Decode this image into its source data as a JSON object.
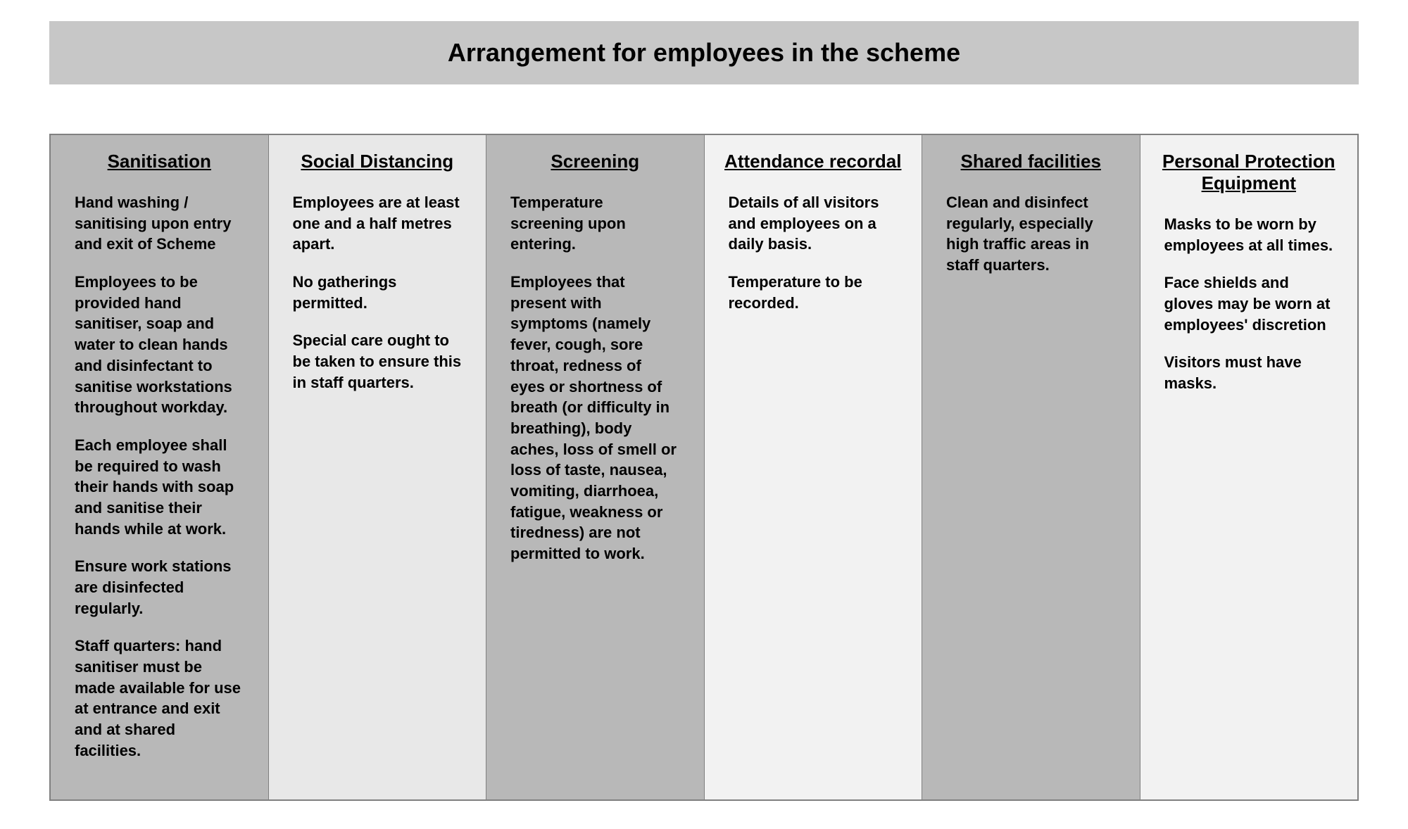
{
  "title": "Arrangement for employees in the scheme",
  "columns": [
    {
      "heading": "Sanitisation",
      "shade": "shade-dark",
      "paragraphs": [
        "Hand washing / sanitising upon entry and exit of Scheme",
        "Employees to be provided hand sanitiser, soap and water to clean hands and disinfectant to sanitise workstations throughout workday.",
        "Each employee shall be required to wash their hands with soap and sanitise their hands while at work.",
        "Ensure work stations are disinfected regularly.",
        "Staff quarters: hand sanitiser must be made available for use at entrance and exit and at shared facilities."
      ]
    },
    {
      "heading": "Social Distancing",
      "shade": "shade-light",
      "paragraphs": [
        "Employees are at least one and a half metres apart.",
        "No gatherings permitted.",
        "Special care ought to be taken to ensure this in staff quarters."
      ]
    },
    {
      "heading": "Screening",
      "shade": "shade-dark",
      "paragraphs": [
        "Temperature screening upon entering.",
        "Employees that present with symptoms (namely fever, cough, sore throat, redness of eyes or shortness of breath (or difficulty in breathing), body aches, loss of smell or loss of taste, nausea, vomiting, diarrhoea, fatigue, weakness or tiredness) are not permitted to work."
      ]
    },
    {
      "heading": "Attendance recordal",
      "shade": "shade-lighter",
      "paragraphs": [
        "Details of all visitors and employees on a daily basis.",
        "Temperature to be recorded."
      ]
    },
    {
      "heading": "Shared facilities",
      "shade": "shade-dark",
      "paragraphs": [
        "Clean and disinfect regularly, especially high traffic areas in staff quarters."
      ]
    },
    {
      "heading": "Personal Protection Equipment",
      "shade": "shade-lighter",
      "paragraphs": [
        "Masks to be worn by employees at all times.",
        "Face shields and gloves may be worn at employees' discretion",
        "Visitors must have masks."
      ]
    }
  ]
}
